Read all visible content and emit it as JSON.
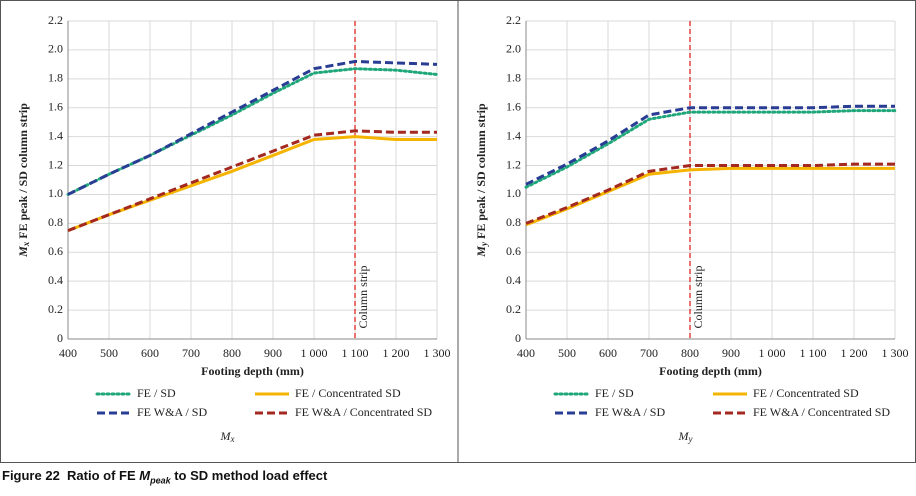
{
  "chart_data": [
    {
      "type": "line",
      "xlabel": "Footing depth (mm)",
      "ylabel": {
        "symbol": "M",
        "subscript": "x",
        "text": " FE peak / SD column strip"
      },
      "chart_label": {
        "symbol": "M",
        "subscript": "x"
      },
      "x": [
        400,
        500,
        600,
        700,
        800,
        900,
        1000,
        1100,
        1200,
        1300
      ],
      "xlim": [
        400,
        1300
      ],
      "xticks": [
        400,
        500,
        600,
        700,
        800,
        900,
        {
          "value": 1000,
          "label": "1 000"
        },
        {
          "value": 1100,
          "label": "1 100"
        },
        {
          "value": 1200,
          "label": "1 200"
        },
        {
          "value": 1300,
          "label": "1 300"
        }
      ],
      "ylim": [
        0,
        2.2
      ],
      "yticks": [
        0,
        0.2,
        0.4,
        0.6,
        0.8,
        {
          "value": 1,
          "label": "1.0"
        },
        1.2,
        1.4,
        1.6,
        1.8,
        {
          "value": 2,
          "label": "2.0"
        },
        2.2
      ],
      "grid": true,
      "reference_line": {
        "x": 1100,
        "label": "Column strip",
        "color": "#e02424"
      },
      "series": [
        {
          "name": "FE / SD",
          "color": "#1fa67a",
          "dash": "dotted",
          "values": [
            1.0,
            1.14,
            1.27,
            1.41,
            1.55,
            1.7,
            1.84,
            1.87,
            1.86,
            1.83
          ]
        },
        {
          "name": "FE / Concentrated SD",
          "color": "#f5b400",
          "dash": "solid",
          "values": [
            0.75,
            0.86,
            0.96,
            1.06,
            1.16,
            1.27,
            1.38,
            1.4,
            1.38,
            1.38
          ]
        },
        {
          "name": "FE W&A / SD",
          "color": "#2a3d94",
          "dash": "dashed",
          "values": [
            1.0,
            1.14,
            1.27,
            1.42,
            1.57,
            1.72,
            1.87,
            1.92,
            1.91,
            1.9
          ]
        },
        {
          "name": "FE W&A / Concentrated SD",
          "color": "#a3281f",
          "dash": "dashed",
          "values": [
            0.75,
            0.86,
            0.97,
            1.08,
            1.19,
            1.3,
            1.41,
            1.44,
            1.43,
            1.43
          ]
        }
      ]
    },
    {
      "type": "line",
      "xlabel": "Footing depth (mm)",
      "ylabel": {
        "symbol": "M",
        "subscript": "y",
        "text": " FE peak / SD column strip"
      },
      "chart_label": {
        "symbol": "M",
        "subscript": "y"
      },
      "x": [
        400,
        500,
        600,
        700,
        800,
        900,
        1000,
        1100,
        1200,
        1300
      ],
      "xlim": [
        400,
        1300
      ],
      "xticks": [
        400,
        500,
        600,
        700,
        800,
        900,
        {
          "value": 1000,
          "label": "1 000"
        },
        {
          "value": 1100,
          "label": "1 100"
        },
        {
          "value": 1200,
          "label": "1 200"
        },
        {
          "value": 1300,
          "label": "1 300"
        }
      ],
      "ylim": [
        0,
        2.2
      ],
      "yticks": [
        0,
        0.2,
        0.4,
        0.6,
        0.8,
        {
          "value": 1,
          "label": "1.0"
        },
        1.2,
        1.4,
        1.6,
        1.8,
        {
          "value": 2,
          "label": "2.0"
        },
        2.2
      ],
      "grid": true,
      "reference_line": {
        "x": 800,
        "label": "Column strip",
        "color": "#e02424"
      },
      "series": [
        {
          "name": "FE / SD",
          "color": "#1fa67a",
          "dash": "dotted",
          "values": [
            1.05,
            1.19,
            1.35,
            1.52,
            1.57,
            1.57,
            1.57,
            1.57,
            1.58,
            1.58
          ]
        },
        {
          "name": "FE / Concentrated SD",
          "color": "#f5b400",
          "dash": "solid",
          "values": [
            0.79,
            0.9,
            1.02,
            1.14,
            1.17,
            1.18,
            1.18,
            1.18,
            1.18,
            1.18
          ]
        },
        {
          "name": "FE W&A / SD",
          "color": "#2a3d94",
          "dash": "dashed",
          "values": [
            1.07,
            1.21,
            1.37,
            1.55,
            1.6,
            1.6,
            1.6,
            1.6,
            1.61,
            1.61
          ]
        },
        {
          "name": "FE W&A / Concentrated SD",
          "color": "#a3281f",
          "dash": "dashed",
          "values": [
            0.8,
            0.91,
            1.03,
            1.16,
            1.2,
            1.2,
            1.2,
            1.2,
            1.21,
            1.21
          ]
        }
      ]
    }
  ],
  "figure_caption": {
    "number": "Figure 22",
    "text_before": "Ratio of FE ",
    "symbol": "M",
    "subscript": "peak",
    "text_after": " to SD method load effect"
  }
}
